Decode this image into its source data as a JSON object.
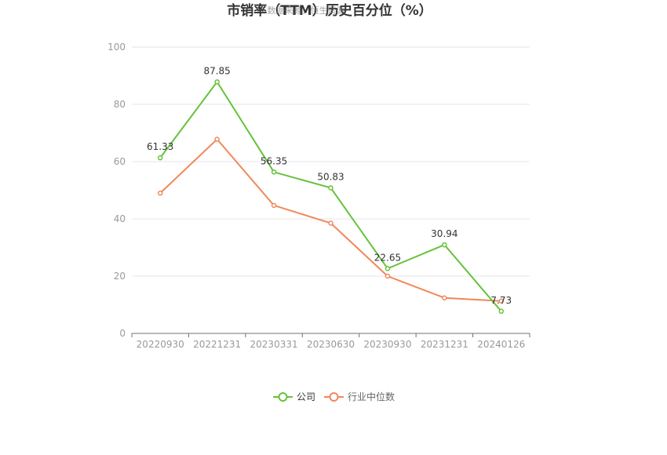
{
  "chart_data": {
    "type": "line",
    "title": "市销率（TTM）历史百分位（%）",
    "watermark": "数据来源：恒生聚源",
    "xlabel": "",
    "ylabel": "",
    "categories": [
      "20220930",
      "20221231",
      "20230331",
      "20230630",
      "20230930",
      "20231231",
      "20240126"
    ],
    "ylim": [
      0,
      100
    ],
    "yticks": [
      0,
      20,
      40,
      60,
      80,
      100
    ],
    "grid": true,
    "legend_position": "bottom",
    "series": [
      {
        "name": "公司",
        "color": "#67c23a",
        "values": [
          61.33,
          87.85,
          56.35,
          50.83,
          22.65,
          30.94,
          7.73
        ],
        "labels": [
          "61.33",
          "87.85",
          "56.35",
          "50.83",
          "22.65",
          "30.94",
          "7.73"
        ]
      },
      {
        "name": "行业中位数",
        "color": "#f0885a",
        "values": [
          49.0,
          67.8,
          44.7,
          38.5,
          20.0,
          12.4,
          11.3
        ],
        "labels": []
      }
    ]
  }
}
